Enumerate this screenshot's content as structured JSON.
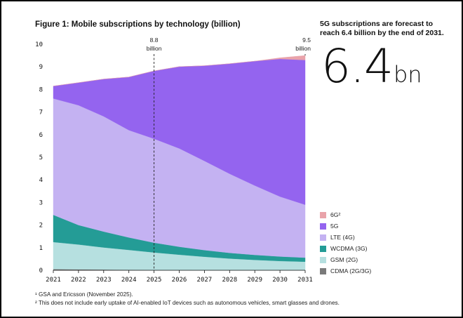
{
  "figure": {
    "title": "Figure 1: Mobile subscriptions by technology (billion)",
    "callout_text": "5G subscriptions are forecast to reach 6.4 billion by the end of 2031.",
    "big_number": "6.4",
    "big_unit": "bn",
    "footnotes": [
      "¹ GSA and Ericsson (November 2025).",
      "² This does not include early uptake of AI-enabled IoT devices such as autonomous vehicles, smart glasses and drones."
    ]
  },
  "chart_data": {
    "type": "area",
    "stacked": true,
    "title": "Mobile subscriptions by technology (billion)",
    "x": [
      "2021",
      "2022",
      "2023",
      "2024",
      "2025",
      "2026",
      "2027",
      "2028",
      "2029",
      "2030",
      "2031"
    ],
    "ylim": [
      0,
      10
    ],
    "yticks": [
      "0",
      "1",
      "2",
      "3",
      "4",
      "5",
      "6",
      "7",
      "8",
      "9",
      "10"
    ],
    "series": [
      {
        "name": "CDMA (2G/3G)",
        "color": "#7a7a7a",
        "values": [
          0.05,
          0.04,
          0.03,
          0.02,
          0.01,
          0.01,
          0.0,
          0.0,
          0.0,
          0.0,
          0.0
        ]
      },
      {
        "name": "GSM (2G)",
        "color": "#b6e0e0",
        "values": [
          1.2,
          1.1,
          0.98,
          0.88,
          0.78,
          0.68,
          0.6,
          0.52,
          0.46,
          0.41,
          0.38
        ]
      },
      {
        "name": "WCDMA (3G)",
        "color": "#249c96",
        "values": [
          1.2,
          0.86,
          0.7,
          0.55,
          0.43,
          0.35,
          0.29,
          0.25,
          0.22,
          0.2,
          0.18
        ]
      },
      {
        "name": "LTE (4G)",
        "color": "#c4b2f2",
        "values": [
          5.15,
          5.3,
          5.1,
          4.75,
          4.6,
          4.35,
          3.95,
          3.5,
          3.07,
          2.65,
          2.34
        ]
      },
      {
        "name": "5G",
        "color": "#9464ef",
        "values": [
          0.55,
          1.0,
          1.65,
          2.35,
          3.0,
          3.62,
          4.21,
          4.87,
          5.5,
          6.09,
          6.4
        ]
      },
      {
        "name": "6G²",
        "color": "#e9a3aa",
        "values": [
          0.0,
          0.0,
          0.0,
          0.0,
          0.0,
          0.0,
          0.0,
          0.0,
          0.0,
          0.05,
          0.2
        ]
      }
    ],
    "legend_order": [
      5,
      4,
      3,
      2,
      1,
      0
    ],
    "annotations": [
      {
        "x": "2025",
        "value": "8.8",
        "unit": "billion",
        "dashed_line": true
      },
      {
        "x": "2031",
        "value": "9.5",
        "unit": "billion",
        "dashed_line": false
      }
    ],
    "legend_position": "right",
    "grid": false
  }
}
